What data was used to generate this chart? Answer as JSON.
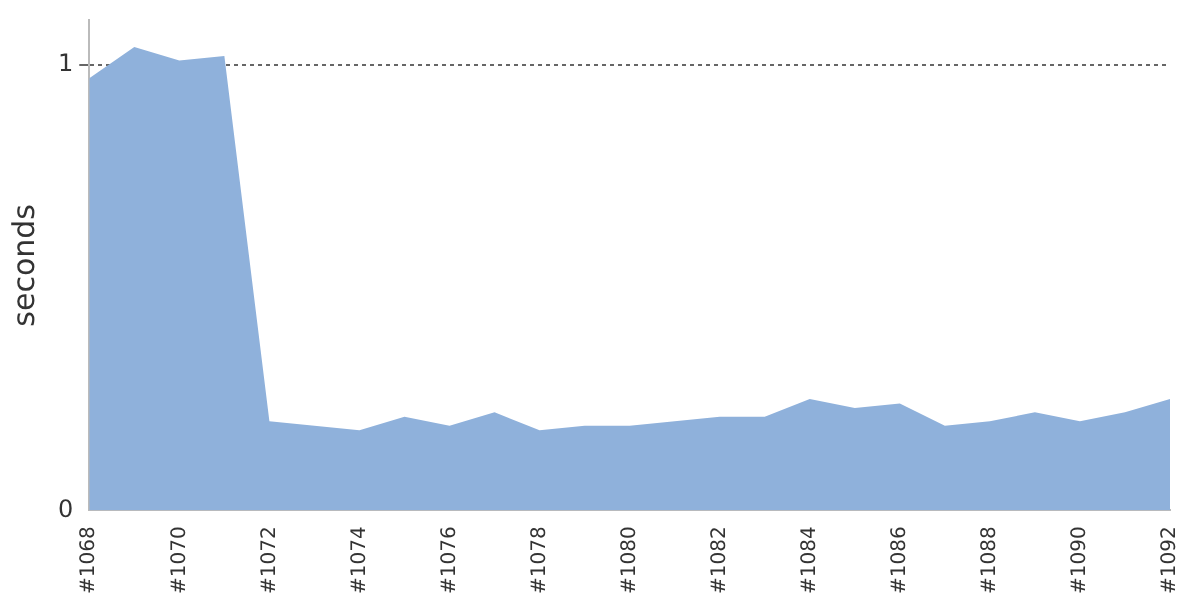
{
  "chart_data": {
    "type": "area",
    "ylabel": "seconds",
    "categories": [
      "#1068",
      null,
      "#1070",
      null,
      "#1072",
      null,
      "#1074",
      null,
      "#1076",
      null,
      "#1078",
      null,
      "#1080",
      null,
      "#1082",
      null,
      "#1084",
      null,
      "#1086",
      null,
      "#1088",
      null,
      "#1090",
      null,
      "#1092"
    ],
    "series": [
      {
        "color": "#8fb1db",
        "values": [
          0.97,
          1.04,
          1.01,
          1.02,
          0.2,
          0.19,
          0.18,
          0.21,
          0.19,
          0.22,
          0.18,
          0.19,
          0.19,
          0.2,
          0.21,
          0.21,
          0.25,
          0.23,
          0.24,
          0.19,
          0.2,
          0.22,
          0.2,
          0.22,
          0.25
        ]
      }
    ],
    "ylim": [
      0,
      1.1
    ],
    "yticks": [
      0,
      1
    ],
    "grid": "y",
    "legend": false
  }
}
